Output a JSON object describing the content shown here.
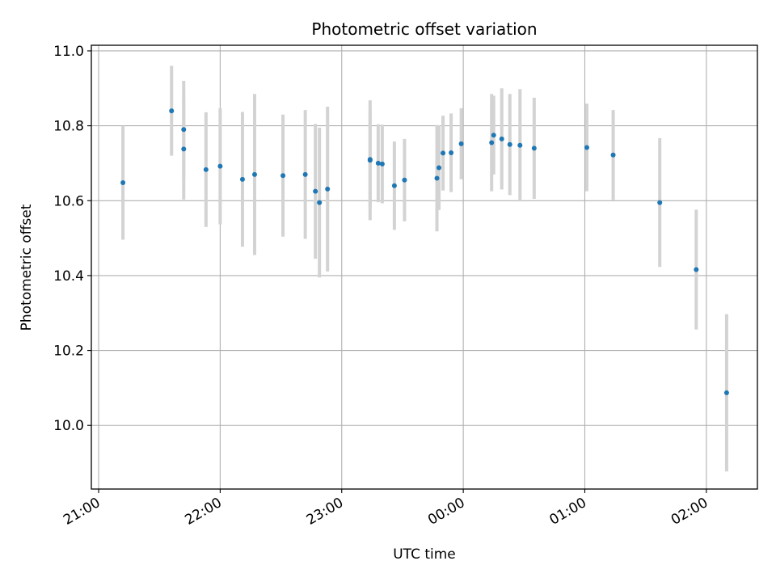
{
  "chart_data": {
    "type": "scatter",
    "title": "Photometric offset variation",
    "xlabel": "UTC time",
    "ylabel": "Photometric offset",
    "x_ticks": [
      "21:00",
      "22:00",
      "23:00",
      "00:00",
      "01:00",
      "02:00"
    ],
    "x_tick_hours": [
      0,
      1,
      2,
      3,
      4,
      5
    ],
    "x_axis_origin_time": "21:00",
    "xlim_hours": [
      -0.06,
      5.42
    ],
    "y_ticks": [
      "10.0",
      "10.2",
      "10.4",
      "10.6",
      "10.8",
      "11.0"
    ],
    "y_tick_values": [
      10.0,
      10.2,
      10.4,
      10.6,
      10.8,
      11.0
    ],
    "ylim": [
      9.83,
      11.015
    ],
    "grid": true,
    "point_color": "#1f77b4",
    "errorbar_color": "#d3d3d3",
    "points": [
      {
        "t": "21:12",
        "y": 10.648,
        "err": 0.152
      },
      {
        "t": "21:36",
        "y": 10.84,
        "err": 0.12
      },
      {
        "t": "21:42",
        "y": 10.79,
        "err": 0.13
      },
      {
        "t": "21:42",
        "y": 10.738,
        "err": 0.135
      },
      {
        "t": "21:53",
        "y": 10.683,
        "err": 0.153
      },
      {
        "t": "22:00",
        "y": 10.692,
        "err": 0.155
      },
      {
        "t": "22:11",
        "y": 10.657,
        "err": 0.18
      },
      {
        "t": "22:17",
        "y": 10.67,
        "err": 0.215
      },
      {
        "t": "22:31",
        "y": 10.667,
        "err": 0.163
      },
      {
        "t": "22:42",
        "y": 10.67,
        "err": 0.172
      },
      {
        "t": "22:47",
        "y": 10.625,
        "err": 0.18
      },
      {
        "t": "22:49",
        "y": 10.595,
        "err": 0.2
      },
      {
        "t": "22:53",
        "y": 10.631,
        "err": 0.22
      },
      {
        "t": "23:14",
        "y": 10.71,
        "err": 0.13
      },
      {
        "t": "23:14",
        "y": 10.708,
        "err": 0.16
      },
      {
        "t": "23:18",
        "y": 10.7,
        "err": 0.104
      },
      {
        "t": "23:20",
        "y": 10.698,
        "err": 0.105
      },
      {
        "t": "23:26",
        "y": 10.64,
        "err": 0.118
      },
      {
        "t": "23:31",
        "y": 10.655,
        "err": 0.11
      },
      {
        "t": "23:47",
        "y": 10.66,
        "err": 0.142
      },
      {
        "t": "23:48",
        "y": 10.688,
        "err": 0.113
      },
      {
        "t": "23:50",
        "y": 10.727,
        "err": 0.1
      },
      {
        "t": "23:54",
        "y": 10.728,
        "err": 0.105
      },
      {
        "t": "23:59",
        "y": 10.752,
        "err": 0.095
      },
      {
        "t": "00:14",
        "y": 10.755,
        "err": 0.13
      },
      {
        "t": "00:15",
        "y": 10.775,
        "err": 0.105
      },
      {
        "t": "00:19",
        "y": 10.765,
        "err": 0.135
      },
      {
        "t": "00:23",
        "y": 10.75,
        "err": 0.135
      },
      {
        "t": "00:28",
        "y": 10.748,
        "err": 0.15
      },
      {
        "t": "00:35",
        "y": 10.74,
        "err": 0.135
      },
      {
        "t": "01:01",
        "y": 10.742,
        "err": 0.117
      },
      {
        "t": "01:14",
        "y": 10.722,
        "err": 0.12
      },
      {
        "t": "01:37",
        "y": 10.595,
        "err": 0.172
      },
      {
        "t": "01:55",
        "y": 10.416,
        "err": 0.16
      },
      {
        "t": "02:10",
        "y": 10.087,
        "err": 0.21
      }
    ]
  }
}
